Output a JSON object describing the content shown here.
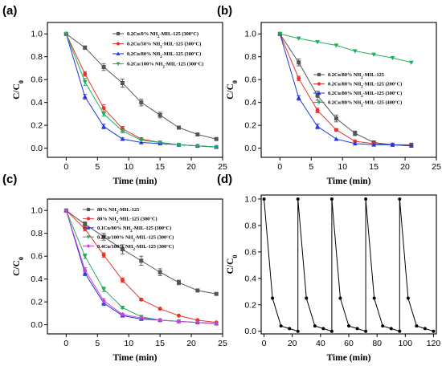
{
  "chart_data": [
    {
      "type": "line",
      "panel_label": "(a)",
      "xlabel": "Time (min)",
      "ylabel": "C/C",
      "ylabel_sub": "0",
      "xlim": [
        -3,
        25
      ],
      "ylim": [
        -0.08,
        1.1
      ],
      "xticks": [
        0,
        5,
        10,
        15,
        20,
        25
      ],
      "yticks": [
        0.0,
        0.2,
        0.4,
        0.6,
        0.8,
        1.0
      ],
      "legend_position": "top-right",
      "series": [
        {
          "name": "0.2Cu/0% NH2-MIL-125 (300°C)",
          "color": "#555555",
          "marker": "square",
          "x": [
            0,
            3,
            6,
            9,
            12,
            15,
            18,
            21,
            24
          ],
          "y": [
            1.0,
            0.88,
            0.71,
            0.57,
            0.4,
            0.29,
            0.18,
            0.12,
            0.08
          ],
          "err": [
            0,
            0.015,
            0.03,
            0.035,
            0.03,
            0.025,
            0,
            0,
            0
          ]
        },
        {
          "name": "0.2Cu/50% NH2-MIL-125 (300°C)",
          "color": "#e8332b",
          "marker": "circle",
          "x": [
            0,
            3,
            6,
            9,
            12,
            15,
            18,
            21,
            24
          ],
          "y": [
            1.0,
            0.65,
            0.35,
            0.17,
            0.08,
            0.05,
            0.03,
            0.02,
            0.01
          ],
          "err": [
            0,
            0.02,
            0.03,
            0.02,
            0.01,
            0,
            0,
            0,
            0
          ]
        },
        {
          "name": "0.2Cu/80% NH2-MIL-125 (300°C)",
          "color": "#1f35e0",
          "marker": "triangle-up",
          "x": [
            0,
            3,
            6,
            9,
            12,
            15,
            18,
            21,
            24
          ],
          "y": [
            1.0,
            0.45,
            0.19,
            0.08,
            0.05,
            0.04,
            0.03,
            0.02,
            0.01
          ],
          "err": [
            0,
            0.02,
            0.02,
            0.01,
            0,
            0,
            0,
            0,
            0
          ]
        },
        {
          "name": "0.2Cu/100% NH2-MIL-125 (300°C)",
          "color": "#1fae5e",
          "marker": "triangle-down",
          "x": [
            0,
            3,
            6,
            9,
            12,
            15,
            18,
            21,
            24
          ],
          "y": [
            1.0,
            0.58,
            0.3,
            0.15,
            0.07,
            0.05,
            0.03,
            0.02,
            0.01
          ],
          "err": [
            0,
            0.03,
            0.02,
            0.015,
            0,
            0,
            0,
            0,
            0
          ]
        }
      ]
    },
    {
      "type": "line",
      "panel_label": "(b)",
      "xlabel": "Time (min)",
      "ylabel": "C/C",
      "ylabel_sub": "0",
      "xlim": [
        -3,
        25
      ],
      "ylim": [
        -0.08,
        1.1
      ],
      "xticks": [
        0,
        5,
        10,
        15,
        20,
        25
      ],
      "yticks": [
        0.0,
        0.2,
        0.4,
        0.6,
        0.8,
        1.0
      ],
      "legend_position": "center-right",
      "series": [
        {
          "name": "0.2Cu/80% NH2-MIL-125",
          "color": "#555555",
          "marker": "square",
          "x": [
            0,
            3,
            6,
            9,
            12,
            15,
            18,
            21
          ],
          "y": [
            1.0,
            0.75,
            0.46,
            0.26,
            0.13,
            0.05,
            0.03,
            0.03
          ],
          "err": [
            0,
            0.03,
            0.04,
            0.03,
            0.02,
            0,
            0,
            0
          ]
        },
        {
          "name": "0.2Cu/80% NH2-MIL-125 (200°C)",
          "color": "#e8332b",
          "marker": "circle",
          "x": [
            0,
            3,
            6,
            9,
            12,
            15,
            18,
            21
          ],
          "y": [
            1.0,
            0.61,
            0.33,
            0.16,
            0.06,
            0.04,
            0.03,
            0.02
          ],
          "err": [
            0,
            0.02,
            0.02,
            0.01,
            0,
            0,
            0,
            0
          ]
        },
        {
          "name": "0.2Cu/80% NH2-MIL-125 (300°C)",
          "color": "#1f35e0",
          "marker": "triangle-up",
          "x": [
            0,
            3,
            6,
            9,
            12,
            15,
            18,
            21
          ],
          "y": [
            1.0,
            0.44,
            0.19,
            0.08,
            0.04,
            0.03,
            0.03,
            0.02
          ],
          "err": [
            0,
            0.02,
            0.02,
            0,
            0,
            0,
            0,
            0
          ]
        },
        {
          "name": "0.2Cu/80% NH2-MIL-125 (400°C)",
          "color": "#1fae5e",
          "marker": "triangle-down",
          "x": [
            0,
            3,
            6,
            9,
            12,
            15,
            18,
            21
          ],
          "y": [
            1.0,
            0.96,
            0.93,
            0.9,
            0.85,
            0.82,
            0.79,
            0.75
          ],
          "err": [
            0,
            0,
            0,
            0,
            0,
            0,
            0,
            0
          ]
        }
      ]
    },
    {
      "type": "line",
      "panel_label": "(c)",
      "xlabel": "Time (min)",
      "ylabel": "C/C",
      "ylabel_sub": "0",
      "xlim": [
        -3,
        25
      ],
      "ylim": [
        -0.08,
        1.1
      ],
      "xticks": [
        0,
        5,
        10,
        15,
        20,
        25
      ],
      "yticks": [
        0.0,
        0.2,
        0.4,
        0.6,
        0.8,
        1.0
      ],
      "legend_position": "top-right",
      "series": [
        {
          "name": "80% NH2-MIL-125",
          "color": "#555555",
          "marker": "square",
          "x": [
            0,
            3,
            6,
            9,
            12,
            15,
            18,
            21,
            24
          ],
          "y": [
            1.0,
            0.88,
            0.77,
            0.66,
            0.56,
            0.46,
            0.37,
            0.3,
            0.27
          ],
          "err": [
            0,
            0.02,
            0.03,
            0.04,
            0.04,
            0.03,
            0.02,
            0,
            0
          ]
        },
        {
          "name": "80% NH2-MIL-125 (300°C)",
          "color": "#e8332b",
          "marker": "circle",
          "x": [
            0,
            3,
            6,
            9,
            12,
            15,
            18,
            21,
            24
          ],
          "y": [
            1.0,
            0.84,
            0.61,
            0.39,
            0.22,
            0.14,
            0.08,
            0.04,
            0.02
          ],
          "err": [
            0,
            0.02,
            0.02,
            0.02,
            0.01,
            0,
            0,
            0,
            0
          ]
        },
        {
          "name": "0.1Cu/80% NH2-MIL-125 (300°C)",
          "color": "#1f35e0",
          "marker": "triangle-up",
          "x": [
            0,
            3,
            6,
            9,
            12,
            15,
            18,
            21,
            24
          ],
          "y": [
            1.0,
            0.45,
            0.19,
            0.08,
            0.05,
            0.04,
            0.03,
            0.02,
            0.01
          ],
          "err": [
            0,
            0.02,
            0.02,
            0.01,
            0,
            0,
            0,
            0,
            0
          ]
        },
        {
          "name": "0.2Cu/100% NH2-MIL-125 (300°C)",
          "color": "#1fae5e",
          "marker": "triangle-down",
          "x": [
            0,
            3,
            6,
            9,
            12,
            15,
            18,
            21,
            24
          ],
          "y": [
            1.0,
            0.6,
            0.31,
            0.15,
            0.07,
            0.04,
            0.03,
            0.02,
            0.01
          ],
          "err": [
            0,
            0.02,
            0.02,
            0.01,
            0,
            0,
            0,
            0,
            0
          ]
        },
        {
          "name": "0.4Cu/100% NH2-MIL-125 (300°C)",
          "color": "#d13fd6",
          "marker": "diamond",
          "x": [
            0,
            3,
            6,
            9,
            12,
            15,
            18,
            21,
            24
          ],
          "y": [
            1.0,
            0.48,
            0.21,
            0.09,
            0.06,
            0.04,
            0.03,
            0.02,
            0.01
          ],
          "err": [
            0,
            0.02,
            0.02,
            0.01,
            0,
            0,
            0,
            0,
            0
          ]
        }
      ]
    },
    {
      "type": "line",
      "panel_label": "(d)",
      "xlabel": "Time (min)",
      "ylabel": "C/C",
      "ylabel_sub": "0",
      "xlim": [
        -2,
        122
      ],
      "ylim": [
        -0.02,
        1.03
      ],
      "xticks": [
        0,
        20,
        40,
        60,
        80,
        100,
        120
      ],
      "yticks": [
        0.0,
        0.2,
        0.4,
        0.6,
        0.8,
        1.0
      ],
      "legend_position": "none",
      "series": [
        {
          "name": "",
          "color": "#000000",
          "marker": "circle",
          "x": [
            0,
            6,
            12,
            18,
            24,
            24,
            30,
            36,
            42,
            48,
            48,
            54,
            60,
            66,
            72,
            72,
            78,
            84,
            90,
            96,
            96,
            102,
            108,
            114,
            120
          ],
          "y": [
            1.0,
            0.25,
            0.04,
            0.02,
            0.0,
            1.0,
            0.25,
            0.04,
            0.02,
            0.0,
            1.0,
            0.25,
            0.04,
            0.02,
            0.0,
            1.0,
            0.25,
            0.04,
            0.02,
            0.0,
            1.0,
            0.25,
            0.04,
            0.02,
            0.0
          ],
          "err": [
            0,
            0,
            0,
            0,
            0,
            0,
            0,
            0,
            0,
            0,
            0,
            0,
            0,
            0,
            0,
            0,
            0,
            0,
            0,
            0,
            0,
            0,
            0,
            0,
            0
          ]
        }
      ]
    }
  ]
}
